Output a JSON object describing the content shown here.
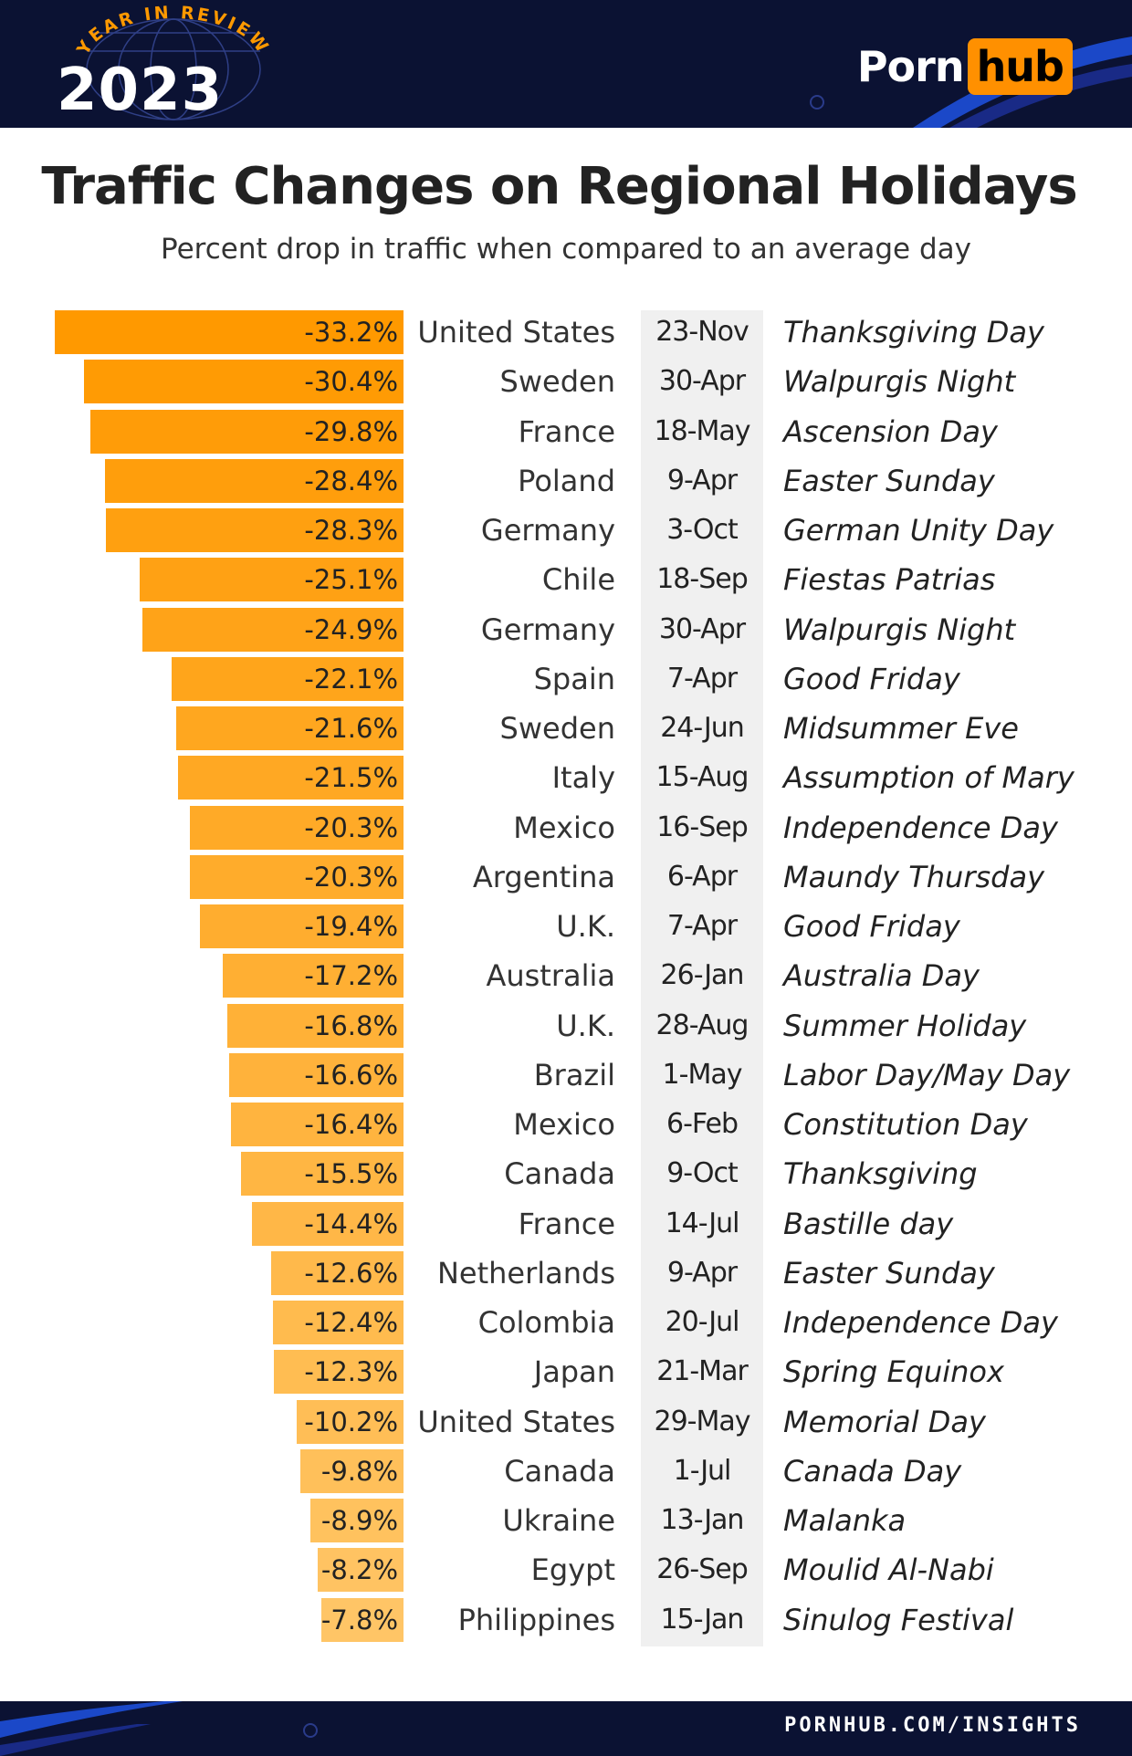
{
  "header": {
    "badge_text": "YEAR IN REVIEW",
    "year": "2023",
    "brand_part1": "Porn",
    "brand_part2": "hub"
  },
  "colors": {
    "bar_dark": "#ff9900",
    "bar_light": "#ffc566",
    "navy": "#0b1233",
    "brand_orange": "#ff9000"
  },
  "chart_data": {
    "type": "bar",
    "orientation": "horizontal",
    "title": "Traffic Changes on Regional Holidays",
    "subtitle": "Percent drop in traffic when compared to an average day",
    "unit": "%",
    "rows": [
      {
        "value": -33.2,
        "label": "-33.2%",
        "country": "United States",
        "date": "23-Nov",
        "holiday": "Thanksgiving Day"
      },
      {
        "value": -30.4,
        "label": "-30.4%",
        "country": "Sweden",
        "date": "30-Apr",
        "holiday": "Walpurgis Night"
      },
      {
        "value": -29.8,
        "label": "-29.8%",
        "country": "France",
        "date": "18-May",
        "holiday": "Ascension Day"
      },
      {
        "value": -28.4,
        "label": "-28.4%",
        "country": "Poland",
        "date": "9-Apr",
        "holiday": "Easter Sunday"
      },
      {
        "value": -28.3,
        "label": "-28.3%",
        "country": "Germany",
        "date": "3-Oct",
        "holiday": "German Unity Day"
      },
      {
        "value": -25.1,
        "label": "-25.1%",
        "country": "Chile",
        "date": "18-Sep",
        "holiday": "Fiestas Patrias"
      },
      {
        "value": -24.9,
        "label": "-24.9%",
        "country": "Germany",
        "date": "30-Apr",
        "holiday": "Walpurgis Night"
      },
      {
        "value": -22.1,
        "label": "-22.1%",
        "country": "Spain",
        "date": "7-Apr",
        "holiday": "Good Friday"
      },
      {
        "value": -21.6,
        "label": "-21.6%",
        "country": "Sweden",
        "date": "24-Jun",
        "holiday": "Midsummer Eve"
      },
      {
        "value": -21.5,
        "label": "-21.5%",
        "country": "Italy",
        "date": "15-Aug",
        "holiday": "Assumption of Mary"
      },
      {
        "value": -20.3,
        "label": "-20.3%",
        "country": "Mexico",
        "date": "16-Sep",
        "holiday": "Independence Day"
      },
      {
        "value": -20.3,
        "label": "-20.3%",
        "country": "Argentina",
        "date": "6-Apr",
        "holiday": "Maundy Thursday"
      },
      {
        "value": -19.4,
        "label": "-19.4%",
        "country": "U.K.",
        "date": "7-Apr",
        "holiday": "Good Friday"
      },
      {
        "value": -17.2,
        "label": "-17.2%",
        "country": "Australia",
        "date": "26-Jan",
        "holiday": "Australia Day"
      },
      {
        "value": -16.8,
        "label": "-16.8%",
        "country": "U.K.",
        "date": "28-Aug",
        "holiday": "Summer Holiday"
      },
      {
        "value": -16.6,
        "label": "-16.6%",
        "country": "Brazil",
        "date": "1-May",
        "holiday": "Labor Day/May Day"
      },
      {
        "value": -16.4,
        "label": "-16.4%",
        "country": "Mexico",
        "date": "6-Feb",
        "holiday": "Constitution Day"
      },
      {
        "value": -15.5,
        "label": "-15.5%",
        "country": "Canada",
        "date": "9-Oct",
        "holiday": "Thanksgiving"
      },
      {
        "value": -14.4,
        "label": "-14.4%",
        "country": "France",
        "date": "14-Jul",
        "holiday": "Bastille day"
      },
      {
        "value": -12.6,
        "label": "-12.6%",
        "country": "Netherlands",
        "date": "9-Apr",
        "holiday": "Easter Sunday"
      },
      {
        "value": -12.4,
        "label": "-12.4%",
        "country": "Colombia",
        "date": "20-Jul",
        "holiday": "Independence Day"
      },
      {
        "value": -12.3,
        "label": "-12.3%",
        "country": "Japan",
        "date": "21-Mar",
        "holiday": "Spring Equinox"
      },
      {
        "value": -10.2,
        "label": "-10.2%",
        "country": "United States",
        "date": "29-May",
        "holiday": "Memorial Day"
      },
      {
        "value": -9.8,
        "label": "-9.8%",
        "country": "Canada",
        "date": "1-Jul",
        "holiday": "Canada Day"
      },
      {
        "value": -8.9,
        "label": "-8.9%",
        "country": "Ukraine",
        "date": "13-Jan",
        "holiday": "Malanka"
      },
      {
        "value": -8.2,
        "label": "-8.2%",
        "country": "Egypt",
        "date": "26-Sep",
        "holiday": "Moulid Al-Nabi"
      },
      {
        "value": -7.8,
        "label": "-7.8%",
        "country": "Philippines",
        "date": "15-Jan",
        "holiday": "Sinulog Festival"
      }
    ],
    "grid": false,
    "legend": "none"
  },
  "footer": {
    "url": "PORNHUB.COM/INSIGHTS"
  }
}
